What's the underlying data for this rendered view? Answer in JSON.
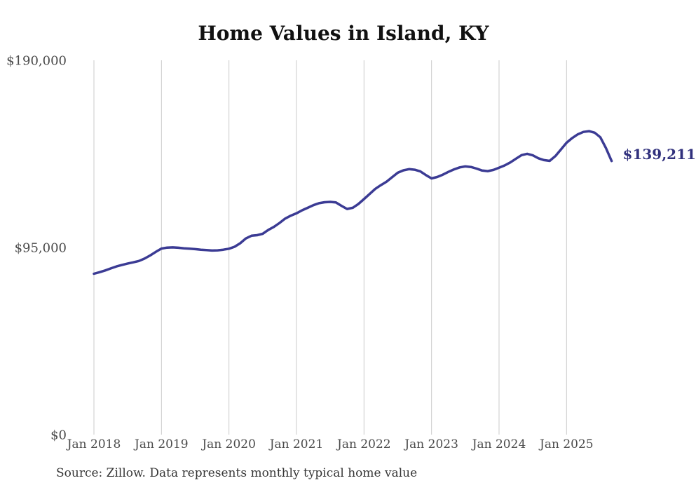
{
  "title": "Home Values in Island, KY",
  "source_note": "Source: Zillow. Data represents monthly typical home value",
  "end_label": "$139,211",
  "colors": {
    "line": "#3b3b94",
    "grid": "#cbcbcb",
    "end_label": "#31317d",
    "axis_text": "#4b4b4b",
    "title_text": "#111111"
  },
  "chart_data": {
    "type": "line",
    "title": "Home Values in Island, KY",
    "xlabel": "",
    "ylabel": "",
    "ylim": [
      0,
      190000
    ],
    "grid": "vertical-only",
    "legend": "none",
    "last_value": 139211,
    "last_value_label": "$139,211",
    "y_tick_values": [
      0,
      95000,
      190000
    ],
    "y_tick_labels": [
      "$0",
      "$95,000",
      "$190,000"
    ],
    "x_tick_indices": [
      0,
      12,
      24,
      36,
      48,
      60,
      72,
      84
    ],
    "x_tick_labels": [
      "Jan 2018",
      "Jan 2019",
      "Jan 2020",
      "Jan 2021",
      "Jan 2022",
      "Jan 2023",
      "Jan 2024",
      "Jan 2025"
    ],
    "x": [
      "2018-01",
      "2018-02",
      "2018-03",
      "2018-04",
      "2018-05",
      "2018-06",
      "2018-07",
      "2018-08",
      "2018-09",
      "2018-10",
      "2018-11",
      "2018-12",
      "2019-01",
      "2019-02",
      "2019-03",
      "2019-04",
      "2019-05",
      "2019-06",
      "2019-07",
      "2019-08",
      "2019-09",
      "2019-10",
      "2019-11",
      "2019-12",
      "2020-01",
      "2020-02",
      "2020-03",
      "2020-04",
      "2020-05",
      "2020-06",
      "2020-07",
      "2020-08",
      "2020-09",
      "2020-10",
      "2020-11",
      "2020-12",
      "2021-01",
      "2021-02",
      "2021-03",
      "2021-04",
      "2021-05",
      "2021-06",
      "2021-07",
      "2021-08",
      "2021-09",
      "2021-10",
      "2021-11",
      "2021-12",
      "2022-01",
      "2022-02",
      "2022-03",
      "2022-04",
      "2022-05",
      "2022-06",
      "2022-07",
      "2022-08",
      "2022-09",
      "2022-10",
      "2022-11",
      "2022-12",
      "2023-01",
      "2023-02",
      "2023-03",
      "2023-04",
      "2023-05",
      "2023-06",
      "2023-07",
      "2023-08",
      "2023-09",
      "2023-10",
      "2023-11",
      "2023-12",
      "2024-01",
      "2024-02",
      "2024-03",
      "2024-04",
      "2024-05",
      "2024-06",
      "2024-07",
      "2024-08",
      "2024-09",
      "2024-10",
      "2024-11",
      "2024-12",
      "2025-01",
      "2025-02",
      "2025-03",
      "2025-04",
      "2025-05",
      "2025-06",
      "2025-07",
      "2025-08",
      "2025-09"
    ],
    "values": [
      82000,
      82800,
      83700,
      84700,
      85700,
      86500,
      87200,
      87800,
      88500,
      89700,
      91300,
      93100,
      94800,
      95300,
      95400,
      95200,
      94900,
      94700,
      94500,
      94200,
      94000,
      93800,
      93900,
      94200,
      94700,
      95700,
      97500,
      99900,
      101300,
      101600,
      102300,
      104300,
      105800,
      107800,
      110000,
      111500,
      112700,
      114200,
      115500,
      116800,
      117800,
      118300,
      118500,
      118200,
      116500,
      114900,
      115500,
      117400,
      119900,
      122500,
      125100,
      127000,
      128700,
      131000,
      133300,
      134500,
      135100,
      134800,
      134000,
      132100,
      130400,
      131100,
      132300,
      133700,
      135000,
      136000,
      136500,
      136200,
      135400,
      134400,
      134100,
      134700,
      135800,
      137000,
      138500,
      140400,
      142200,
      142900,
      142100,
      140600,
      139700,
      139300,
      141700,
      145100,
      148500,
      150900,
      152800,
      154000,
      154400,
      153600,
      151300,
      145800,
      139211
    ]
  }
}
